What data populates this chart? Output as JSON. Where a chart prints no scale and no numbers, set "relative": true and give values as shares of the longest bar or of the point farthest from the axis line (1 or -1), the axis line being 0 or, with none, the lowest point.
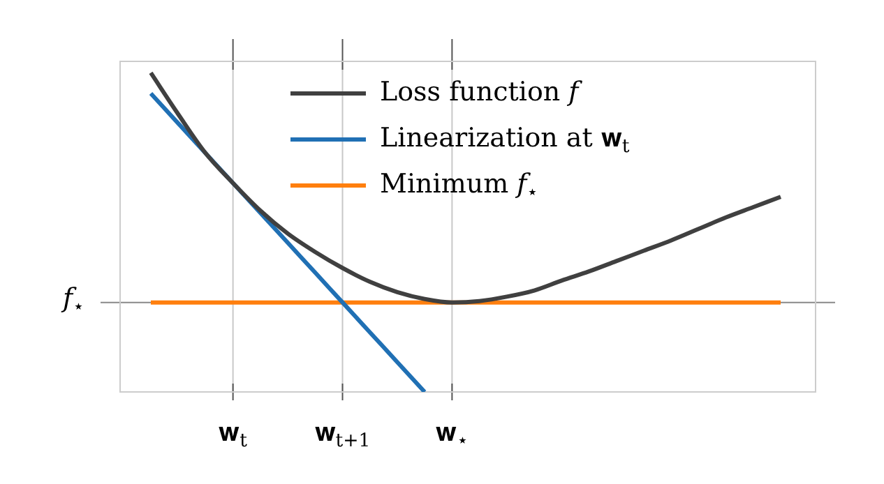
{
  "chart_data": {
    "type": "line",
    "relative": true,
    "legend": "top",
    "grid": "x",
    "marker": "none",
    "line_style": "solid",
    "categories": [
      null,
      null,
      null,
      "𝐰$_{t}$",
      null,
      null,
      null,
      "𝐰$_{t+1}$",
      null,
      null,
      null,
      "𝐰$_{⋆}$",
      null,
      null,
      null,
      null,
      null,
      null,
      null,
      null,
      null,
      null,
      null,
      null
    ],
    "ref_lines": [
      {
        "axis": "y",
        "value": 0,
        "label": "𝑓$_{⋆}$",
        "color": "#888888"
      }
    ],
    "series": [
      {
        "name": "Loss function 𝑓",
        "color": "#404040",
        "values": [
          1,
          0.82,
          0.65,
          0.52,
          0.4,
          0.3,
          0.22,
          0.15,
          0.09,
          0.045,
          0.015,
          0,
          0.006,
          0.025,
          0.052,
          0.095,
          0.135,
          0.18,
          0.225,
          0.27,
          0.32,
          0.37,
          0.415,
          0.46
        ]
      },
      {
        "name": "Linearization at 𝐰$_{t}$",
        "color": "#2070b4",
        "values": [
          0.91,
          0.78,
          0.65,
          0.52,
          0.39,
          0.26,
          0.13,
          0,
          -0.13,
          -0.26,
          -0.39,
          null,
          null,
          null,
          null,
          null,
          null,
          null,
          null,
          null,
          null,
          null,
          null,
          null
        ]
      },
      {
        "name": "Minimum 𝑓$_{⋆}$",
        "color": "#ff7f0e",
        "values": [
          0,
          0,
          0,
          0,
          0,
          0,
          0,
          0,
          0,
          0,
          0,
          0,
          0,
          0,
          0,
          0,
          0,
          0,
          0,
          0,
          0,
          0,
          0,
          0
        ]
      }
    ]
  }
}
